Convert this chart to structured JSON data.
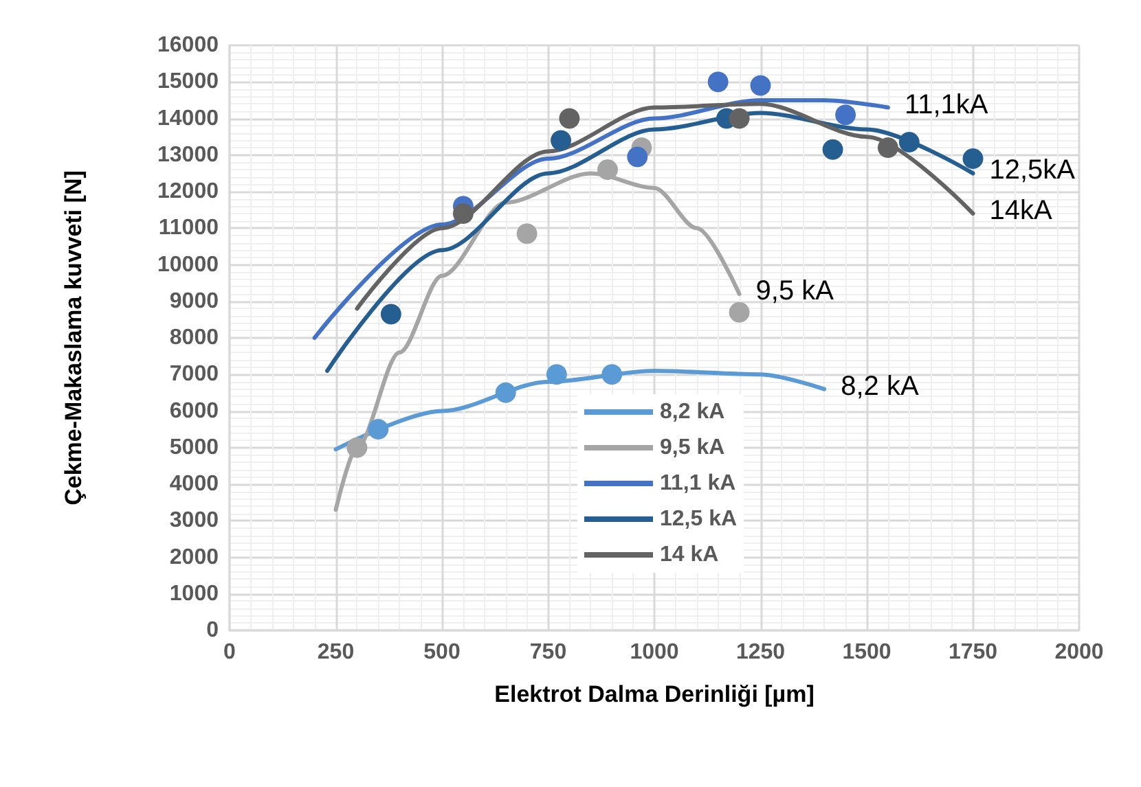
{
  "chart_data": {
    "type": "scatter",
    "xlabel": "Elektrot Dalma Derinliği [µm]",
    "ylabel": "Çekme-Makaslama kuvveti [N]",
    "xlim": [
      0,
      2000
    ],
    "xticks": [
      0,
      250,
      500,
      750,
      1000,
      1250,
      1500,
      1750,
      2000
    ],
    "ylim": [
      0,
      16000
    ],
    "yticks": [
      0,
      1000,
      2000,
      3000,
      4000,
      5000,
      6000,
      7000,
      8000,
      9000,
      10000,
      11000,
      12000,
      13000,
      14000,
      15000,
      16000
    ],
    "grid": true,
    "legend": "bottom",
    "line_style": "solid",
    "series": [
      {
        "name": "8,2 kA",
        "type": "line",
        "color": "#5b9bd5",
        "x": [
          250,
          500,
          750,
          1000,
          1250,
          1400
        ],
        "values": [
          4950,
          6000,
          6800,
          7100,
          7000,
          6600
        ]
      },
      {
        "name": "9,5 kA",
        "type": "line",
        "color": "#a5a5a5",
        "x": [
          250,
          300,
          400,
          500,
          650,
          850,
          1000,
          1100,
          1200
        ],
        "values": [
          3300,
          5000,
          7600,
          9700,
          11700,
          12500,
          12100,
          11000,
          9200
        ]
      },
      {
        "name": "11,1 kA",
        "type": "line",
        "color": "#4472c4",
        "x": [
          200,
          500,
          750,
          1000,
          1250,
          1400,
          1550
        ],
        "values": [
          8000,
          11100,
          12900,
          14000,
          14500,
          14500,
          14300
        ]
      },
      {
        "name": "12,5 kA",
        "type": "line",
        "color": "#255e91",
        "x": [
          230,
          500,
          750,
          1000,
          1250,
          1500,
          1750
        ],
        "values": [
          7100,
          10400,
          12500,
          13700,
          14150,
          13700,
          12500
        ]
      },
      {
        "name": "14 kA",
        "type": "line",
        "color": "#636363",
        "x": [
          300,
          500,
          750,
          1000,
          1250,
          1500,
          1750
        ],
        "values": [
          8800,
          11000,
          13100,
          14300,
          14400,
          13500,
          11400
        ]
      },
      {
        "color": "#5b9bd5",
        "x": [
          350,
          650,
          770,
          900
        ],
        "values": [
          5500,
          6500,
          7000,
          7000
        ]
      },
      {
        "color": "#a5a5a5",
        "x": [
          300,
          700,
          890,
          970,
          1200
        ],
        "values": [
          5000,
          10850,
          12600,
          13200,
          8700
        ]
      },
      {
        "color": "#4472c4",
        "x": [
          550,
          960,
          1150,
          1250,
          1450
        ],
        "values": [
          11600,
          12950,
          15000,
          14900,
          14100
        ]
      },
      {
        "color": "#255e91",
        "x": [
          380,
          780,
          1170,
          1420,
          1600,
          1750
        ],
        "values": [
          8650,
          13400,
          14000,
          13150,
          13350,
          12900
        ]
      },
      {
        "color": "#636363",
        "x": [
          550,
          800,
          1200,
          1550
        ],
        "values": [
          11400,
          14000,
          14000,
          13200
        ]
      }
    ],
    "annotations": [
      {
        "text": "11,1kA",
        "x": 1550,
        "y": 14300
      },
      {
        "text": "12,5kA",
        "x": 1750,
        "y": 12500
      },
      {
        "text": "14kA",
        "x": 1750,
        "y": 11400
      },
      {
        "text": "9,5 kA",
        "x": 1200,
        "y": 9200
      },
      {
        "text": "8,2 kA",
        "x": 1400,
        "y": 6600
      }
    ]
  }
}
